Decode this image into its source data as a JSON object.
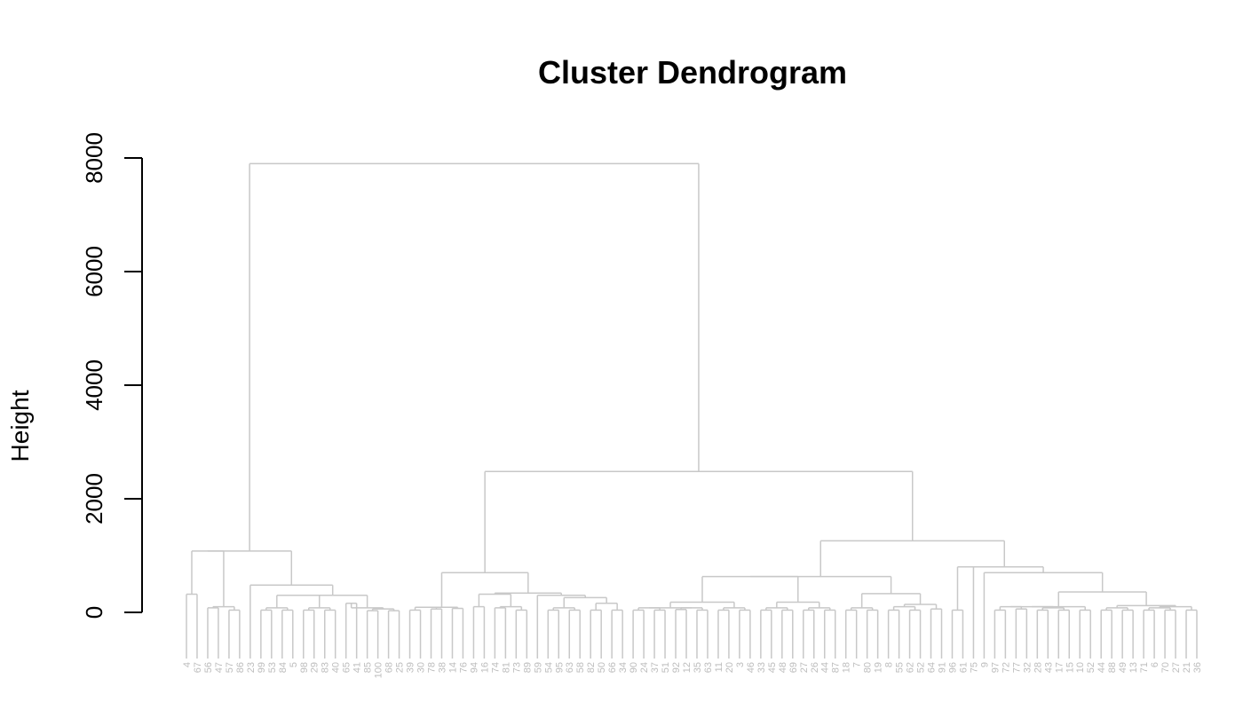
{
  "chart_data": {
    "type": "dendrogram",
    "title": "Cluster Dendrogram",
    "ylabel": "Height",
    "xlabel": "",
    "ylim": [
      0,
      8000
    ],
    "yticks": [
      0,
      2000,
      4000,
      6000,
      8000
    ],
    "leaves": [
      "4",
      "67",
      "56",
      "47",
      "57",
      "86",
      "23",
      "99",
      "53",
      "84",
      "5",
      "98",
      "29",
      "83",
      "40",
      "65",
      "41",
      "85",
      "100",
      "68",
      "25",
      "39",
      "30",
      "78",
      "38",
      "14",
      "76",
      "94",
      "16",
      "74",
      "81",
      "73",
      "89",
      "59",
      "54",
      "95",
      "63",
      "58",
      "82",
      "50",
      "66",
      "34",
      "90",
      "24",
      "37",
      "51",
      "92",
      "12",
      "35",
      "63",
      "11",
      "20",
      "3",
      "46",
      "33",
      "45",
      "48",
      "69",
      "27",
      "26",
      "44",
      "87",
      "18",
      "7",
      "80",
      "19",
      "8",
      "55",
      "62",
      "52",
      "64",
      "91",
      "96",
      "61",
      "75",
      "9",
      "97",
      "72",
      "77",
      "32",
      "28",
      "43",
      "17",
      "15",
      "10",
      "52",
      "44",
      "88",
      "49",
      "13",
      "71",
      "6",
      "70",
      "27",
      "21",
      "36"
    ],
    "merges": [
      [
        -1,
        -2,
        320
      ],
      [
        -3,
        -4,
        80
      ],
      [
        -5,
        -6,
        40
      ],
      [
        2,
        3,
        100
      ],
      [
        1,
        4,
        1080
      ],
      [
        -8,
        -9,
        40
      ],
      [
        -10,
        -11,
        40
      ],
      [
        6,
        7,
        80
      ],
      [
        -12,
        -13,
        40
      ],
      [
        -14,
        -15,
        40
      ],
      [
        9,
        10,
        80
      ],
      [
        8,
        11,
        300
      ],
      [
        -16,
        -17,
        160
      ],
      [
        -18,
        -19,
        30
      ],
      [
        -20,
        -21,
        30
      ],
      [
        14,
        15,
        60
      ],
      [
        13,
        16,
        80
      ],
      [
        12,
        17,
        300
      ],
      [
        -7,
        18,
        480
      ],
      [
        5,
        19,
        1080
      ],
      [
        -22,
        -23,
        40
      ],
      [
        -24,
        -25,
        60
      ],
      [
        21,
        22,
        90
      ],
      [
        -26,
        -27,
        70
      ],
      [
        23,
        24,
        90
      ],
      [
        -28,
        -29,
        100
      ],
      [
        -30,
        -31,
        80
      ],
      [
        -32,
        -33,
        40
      ],
      [
        27,
        28,
        100
      ],
      [
        26,
        29,
        320
      ],
      [
        -35,
        -36,
        40
      ],
      [
        -37,
        -38,
        40
      ],
      [
        31,
        32,
        80
      ],
      [
        -39,
        -40,
        40
      ],
      [
        -41,
        -42,
        40
      ],
      [
        34,
        35,
        160
      ],
      [
        33,
        36,
        260
      ],
      [
        -34,
        37,
        300
      ],
      [
        30,
        38,
        340
      ],
      [
        25,
        39,
        700
      ],
      [
        -43,
        -44,
        40
      ],
      [
        -45,
        -46,
        40
      ],
      [
        41,
        42,
        80
      ],
      [
        -47,
        -48,
        50
      ],
      [
        -49,
        -50,
        40
      ],
      [
        44,
        45,
        80
      ],
      [
        43,
        46,
        80
      ],
      [
        -51,
        -52,
        40
      ],
      [
        -53,
        -54,
        40
      ],
      [
        48,
        49,
        80
      ],
      [
        47,
        50,
        180
      ],
      [
        -55,
        -56,
        40
      ],
      [
        -57,
        -58,
        40
      ],
      [
        52,
        53,
        80
      ],
      [
        -59,
        -60,
        40
      ],
      [
        -61,
        -62,
        40
      ],
      [
        55,
        56,
        80
      ],
      [
        54,
        57,
        180
      ],
      [
        51,
        58,
        630
      ],
      [
        -63,
        -64,
        40
      ],
      [
        -65,
        -66,
        40
      ],
      [
        60,
        61,
        80
      ],
      [
        -67,
        -68,
        40
      ],
      [
        -69,
        -70,
        40
      ],
      [
        63,
        64,
        100
      ],
      [
        -71,
        -72,
        60
      ],
      [
        65,
        66,
        140
      ],
      [
        62,
        67,
        330
      ],
      [
        59,
        68,
        630
      ],
      [
        -73,
        -74,
        40
      ],
      [
        70,
        -75,
        800
      ],
      [
        -77,
        -78,
        40
      ],
      [
        -79,
        -80,
        60
      ],
      [
        72,
        73,
        100
      ],
      [
        -81,
        -82,
        40
      ],
      [
        -83,
        -84,
        40
      ],
      [
        75,
        76,
        80
      ],
      [
        74,
        77,
        100
      ],
      [
        -85,
        -86,
        40
      ],
      [
        78,
        79,
        100
      ],
      [
        -87,
        -88,
        40
      ],
      [
        -89,
        -90,
        40
      ],
      [
        81,
        82,
        80
      ],
      [
        -91,
        -92,
        40
      ],
      [
        -93,
        -94,
        40
      ],
      [
        84,
        85,
        80
      ],
      [
        -95,
        -96,
        40
      ],
      [
        86,
        87,
        100
      ],
      [
        83,
        88,
        120
      ],
      [
        80,
        89,
        360
      ],
      [
        -76,
        90,
        700
      ],
      [
        71,
        91,
        800
      ],
      [
        69,
        92,
        1260
      ],
      [
        40,
        93,
        2480
      ],
      [
        20,
        94,
        7900
      ]
    ]
  }
}
